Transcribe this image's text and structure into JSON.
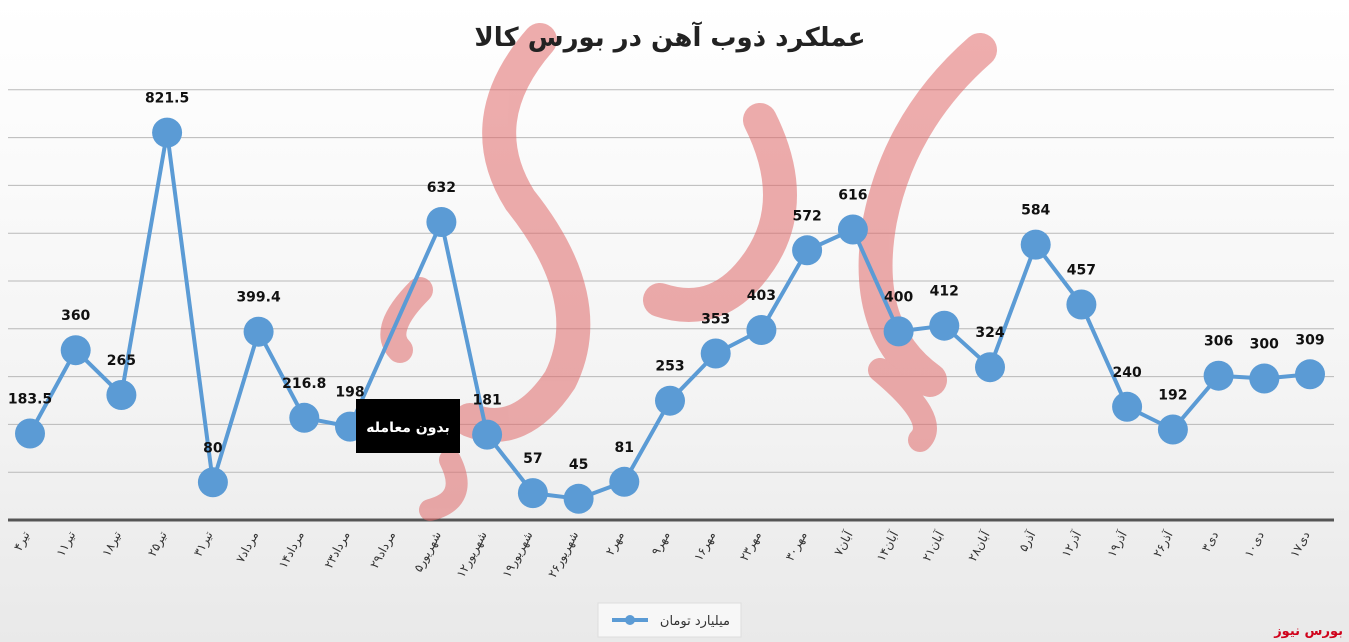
{
  "chart_data": {
    "type": "line",
    "title": "عملکرد ذوب آهن در بورس کالا",
    "categories": [
      "۴تیر",
      "۱۱تیر",
      "۱۸تیر",
      "۲۵تیر",
      "۳۱تیر",
      "۷مرداد",
      "۱۴مرداد",
      "۲۳مرداد",
      "۲۹مرداد",
      "۵شهریور",
      "۱۲شهریور",
      "۱۹شهریور",
      "۲۶شهریور",
      "۲مهر",
      "۹مهر",
      "۱۶مهر",
      "۲۳مهر",
      "۳۰مهر",
      "۷آبان",
      "۱۴آبان",
      "۲۱آبان",
      "۲۸آبان",
      "۵آذر",
      "۱۲آذر",
      "۱۹آذر",
      "۲۶آذر",
      "۳دی",
      "۱۰دی",
      "۱۷دی"
    ],
    "series": [
      {
        "name": "میلیارد تومان",
        "color": "#5b9bd5",
        "values": [
          183.5,
          360,
          265,
          821.5,
          80,
          399.4,
          216.8,
          198,
          null,
          632,
          181,
          57,
          45,
          81,
          253,
          353,
          403,
          572,
          616,
          400,
          412,
          324,
          584,
          457,
          240,
          192,
          306,
          300,
          309
        ]
      }
    ],
    "value_labels": [
      "183.5",
      "360",
      "265",
      "821.5",
      "80",
      "399.4",
      "216.8",
      "198",
      "",
      "632",
      "181",
      "57",
      "45",
      "81",
      "253",
      "353",
      "403",
      "572",
      "616",
      "400",
      "412",
      "324",
      "584",
      "457",
      "240",
      "192",
      "306",
      "300",
      "309"
    ],
    "annotation": "بدون معامله",
    "grid": true,
    "legend_position": "bottom"
  },
  "watermark": {
    "text": "بورس نیوز",
    "color": "#d0021b"
  }
}
